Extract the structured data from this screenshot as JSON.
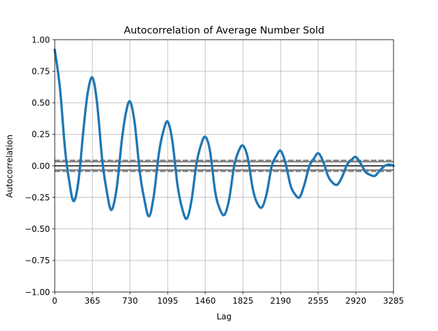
{
  "chart_data": {
    "type": "line",
    "title": "Autocorrelation of Average Number Sold",
    "xlabel": "Lag",
    "ylabel": "Autocorrelation",
    "xlim": [
      0,
      3285
    ],
    "ylim": [
      -1.0,
      1.0
    ],
    "xticks": [
      0,
      365,
      730,
      1095,
      1460,
      1825,
      2190,
      2555,
      2920,
      3285
    ],
    "xtick_labels": [
      "0",
      "365",
      "730",
      "1095",
      "1460",
      "1825",
      "2190",
      "2555",
      "2920",
      "3285"
    ],
    "yticks": [
      -1.0,
      -0.75,
      -0.5,
      -0.25,
      0.0,
      0.25,
      0.5,
      0.75,
      1.0
    ],
    "ytick_labels": [
      "−1.00",
      "−0.75",
      "−0.50",
      "−0.25",
      "0.00",
      "0.25",
      "0.50",
      "0.75",
      "1.00"
    ],
    "grid": true,
    "legend": "none",
    "reference_lines": {
      "zero": 0.0,
      "confidence_inner": [
        0.033,
        -0.033
      ],
      "confidence_outer": [
        0.043,
        -0.043
      ]
    },
    "series": [
      {
        "color": "#1f77b4",
        "x": [
          0,
          50,
          100,
          140,
          183,
          230,
          280,
          320,
          365,
          410,
          460,
          500,
          548,
          600,
          650,
          690,
          730,
          775,
          825,
          865,
          913,
          960,
          1010,
          1055,
          1095,
          1140,
          1190,
          1230,
          1278,
          1325,
          1375,
          1420,
          1460,
          1505,
          1555,
          1595,
          1643,
          1690,
          1740,
          1785,
          1825,
          1870,
          1920,
          1960,
          2008,
          2055,
          2105,
          2150,
          2190,
          2235,
          2285,
          2325,
          2373,
          2420,
          2470,
          2515,
          2555,
          2600,
          2650,
          2690,
          2738,
          2785,
          2835,
          2880,
          2920,
          2965,
          3015,
          3055,
          3103,
          3150,
          3200,
          3250,
          3285
        ],
        "values": [
          0.92,
          0.62,
          0.13,
          -0.12,
          -0.28,
          -0.12,
          0.3,
          0.58,
          0.7,
          0.5,
          0.05,
          -0.18,
          -0.35,
          -0.18,
          0.2,
          0.42,
          0.51,
          0.34,
          -0.05,
          -0.25,
          -0.4,
          -0.24,
          0.1,
          0.28,
          0.35,
          0.2,
          -0.15,
          -0.32,
          -0.42,
          -0.28,
          0.02,
          0.17,
          0.23,
          0.12,
          -0.2,
          -0.33,
          -0.39,
          -0.27,
          0.0,
          0.12,
          0.16,
          0.07,
          -0.18,
          -0.29,
          -0.33,
          -0.22,
          0.0,
          0.08,
          0.12,
          0.03,
          -0.15,
          -0.22,
          -0.25,
          -0.15,
          0.0,
          0.06,
          0.1,
          0.04,
          -0.08,
          -0.13,
          -0.15,
          -0.09,
          0.01,
          0.05,
          0.07,
          0.02,
          -0.05,
          -0.07,
          -0.08,
          -0.04,
          0.0,
          0.01,
          0.0
        ]
      }
    ]
  }
}
